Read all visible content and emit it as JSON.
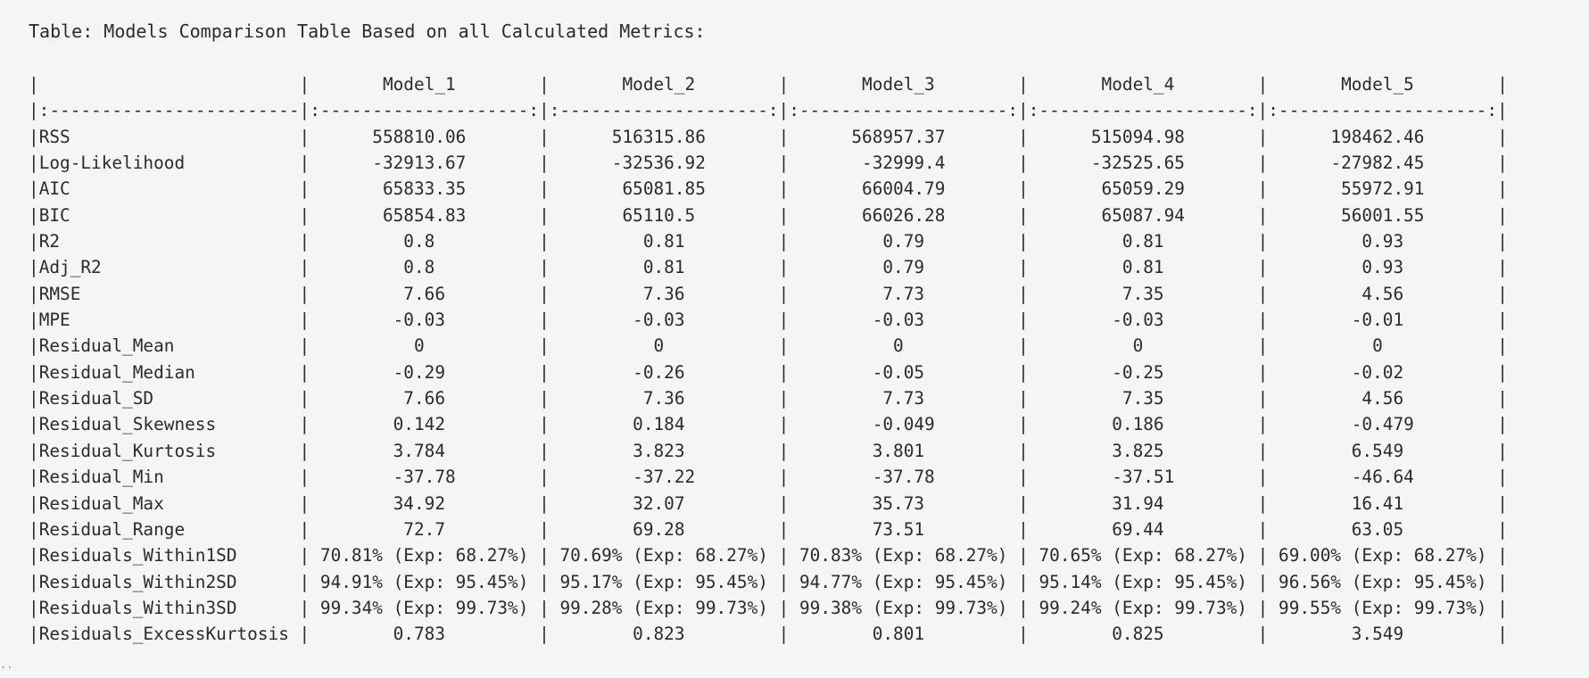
{
  "caption": "Table: Models Comparison Table Based on all Calculated Metrics:",
  "table": {
    "header": [
      "",
      "Model_1",
      "Model_2",
      "Model_3",
      "Model_4",
      "Model_5"
    ],
    "align": [
      "left",
      "center",
      "center",
      "center",
      "center",
      "center"
    ],
    "rows": [
      [
        "RSS",
        "558810.06",
        "516315.86",
        "568957.37",
        "515094.98",
        "198462.46"
      ],
      [
        "Log-Likelihood",
        "-32913.67",
        "-32536.92",
        "-32999.4",
        "-32525.65",
        "-27982.45"
      ],
      [
        "AIC",
        "65833.35",
        "65081.85",
        "66004.79",
        "65059.29",
        "55972.91"
      ],
      [
        "BIC",
        "65854.83",
        "65110.5",
        "66026.28",
        "65087.94",
        "56001.55"
      ],
      [
        "R2",
        "0.8",
        "0.81",
        "0.79",
        "0.81",
        "0.93"
      ],
      [
        "Adj_R2",
        "0.8",
        "0.81",
        "0.79",
        "0.81",
        "0.93"
      ],
      [
        "RMSE",
        "7.66",
        "7.36",
        "7.73",
        "7.35",
        "4.56"
      ],
      [
        "MPE",
        "-0.03",
        "-0.03",
        "-0.03",
        "-0.03",
        "-0.01"
      ],
      [
        "Residual_Mean",
        "0",
        "0",
        "0",
        "0",
        "0"
      ],
      [
        "Residual_Median",
        "-0.29",
        "-0.26",
        "-0.05",
        "-0.25",
        "-0.02"
      ],
      [
        "Residual_SD",
        "7.66",
        "7.36",
        "7.73",
        "7.35",
        "4.56"
      ],
      [
        "Residual_Skewness",
        "0.142",
        "0.184",
        "-0.049",
        "0.186",
        "-0.479"
      ],
      [
        "Residual_Kurtosis",
        "3.784",
        "3.823",
        "3.801",
        "3.825",
        "6.549"
      ],
      [
        "Residual_Min",
        "-37.78",
        "-37.22",
        "-37.78",
        "-37.51",
        "-46.64"
      ],
      [
        "Residual_Max",
        "34.92",
        "32.07",
        "35.73",
        "31.94",
        "16.41"
      ],
      [
        "Residual_Range",
        "72.7",
        "69.28",
        "73.51",
        "69.44",
        "63.05"
      ],
      [
        "Residuals_Within1SD",
        "70.81% (Exp: 68.27%)",
        "70.69% (Exp: 68.27%)",
        "70.83% (Exp: 68.27%)",
        "70.65% (Exp: 68.27%)",
        "69.00% (Exp: 68.27%)"
      ],
      [
        "Residuals_Within2SD",
        "94.91% (Exp: 95.45%)",
        "95.17% (Exp: 95.45%)",
        "94.77% (Exp: 95.45%)",
        "95.14% (Exp: 95.45%)",
        "96.56% (Exp: 95.45%)"
      ],
      [
        "Residuals_Within3SD",
        "99.34% (Exp: 99.73%)",
        "99.28% (Exp: 99.73%)",
        "99.38% (Exp: 99.73%)",
        "99.24% (Exp: 99.73%)",
        "99.55% (Exp: 99.73%)"
      ],
      [
        "Residuals_ExcessKurtosis",
        "0.783",
        "0.823",
        "0.801",
        "0.825",
        "3.549"
      ]
    ]
  },
  "trailing_marker": ".."
}
